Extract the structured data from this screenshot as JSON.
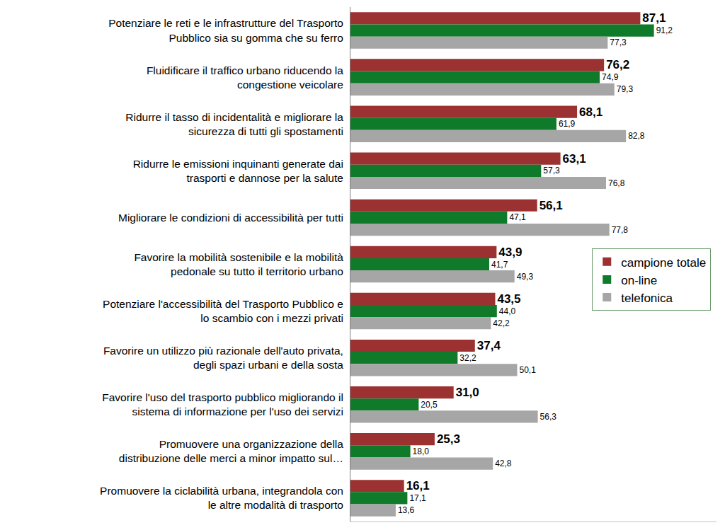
{
  "chart_data": {
    "type": "bar",
    "orientation": "horizontal",
    "data_labels": true,
    "tick_labels": "y",
    "legend": "right",
    "grid": false,
    "xlim": [
      0,
      110
    ],
    "xticks": [],
    "categories": [
      "Potenziare le reti e le infrastrutture del Trasporto\nPubblico sia su gomma che su ferro",
      "Fluidificare il traffico urbano riducendo la\ncongestione veicolare",
      "Ridurre il tasso di incidentalità e migliorare la\nsicurezza di tutti gli spostamenti",
      "Ridurre le emissioni inquinanti generate dai\ntrasporti e dannose per la salute",
      "Migliorare le condizioni di accessibilità per tutti",
      "Favorire la mobilità sostenibile e la mobilità\npedonale su tutto il territorio urbano",
      "Potenziare l'accessibilità del Trasporto Pubblico e\nlo scambio con i mezzi privati",
      "Favorire un utilizzo più razionale dell'auto privata,\ndegli spazi urbani e della sosta",
      "Favorire l'uso del trasporto pubblico migliorando il\nsistema di informazione per l'uso dei servizi",
      "Promuovere una organizzazione della\ndistribuzione delle merci a minor impatto sul…",
      "Promuovere la ciclabilità urbana, integrandola con\nle altre modalità di trasporto"
    ],
    "series": [
      {
        "name": "campione totale",
        "color": "#9b3131",
        "values": [
          87.1,
          76.2,
          68.1,
          63.1,
          56.1,
          43.9,
          43.5,
          37.4,
          31.0,
          25.3,
          16.1
        ],
        "value_labels": [
          "87,1",
          "76,2",
          "68,1",
          "63,1",
          "56,1",
          "43,9",
          "43,5",
          "37,4",
          "31,0",
          "25,3",
          "16,1"
        ]
      },
      {
        "name": "on-line",
        "color": "#0f7a2a",
        "values": [
          91.2,
          74.9,
          61.9,
          57.3,
          47.1,
          41.7,
          44.0,
          32.2,
          20.5,
          18.0,
          17.1
        ],
        "value_labels": [
          "91,2",
          "74,9",
          "61,9",
          "57,3",
          "47,1",
          "41,7",
          "44,0",
          "32,2",
          "20,5",
          "18,0",
          "17,1"
        ]
      },
      {
        "name": "telefonica",
        "color": "#a6a6a6",
        "values": [
          77.3,
          79.3,
          82.8,
          76.8,
          77.8,
          49.3,
          42.2,
          50.1,
          56.3,
          42.8,
          13.6
        ],
        "value_labels": [
          "77,3",
          "79,3",
          "82,8",
          "76,8",
          "77,8",
          "49,3",
          "42,2",
          "50,1",
          "56,3",
          "42,8",
          "13,6"
        ]
      }
    ]
  }
}
